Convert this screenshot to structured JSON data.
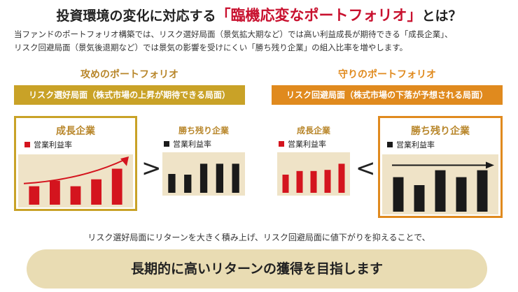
{
  "header": {
    "title_before": "投資環境の変化に対応する",
    "title_highlight": "「臨機応変なポートフォリオ」",
    "title_after": "とは？",
    "intro_line1": "当ファンドのポートフォリオ構築では、リスク選好局面（景気拡大期など）では高い利益成長が期待できる「成長企業」、",
    "intro_line2": "リスク回避局面（景気後退期など）では景気の影響を受けにくい「勝ち残り企業」の組入比率を増やします。"
  },
  "left": {
    "heading": "攻めのポートフォリオ",
    "banner": "リスク選好局面（株式市場の上昇が期待できる局面）",
    "big_panel": {
      "title": "成長企業",
      "legend": "営業利益率",
      "values": [
        40,
        52,
        40,
        55,
        78
      ],
      "arrow": "rising"
    },
    "small_panel": {
      "title": "勝ち残り企業",
      "legend": "営業利益率",
      "values": [
        52,
        50,
        80,
        80,
        80
      ]
    },
    "compare_symbol": ">"
  },
  "right": {
    "heading": "守りのポートフォリオ",
    "banner": "リスク回避局面（株式市場の下落が予想される局面）",
    "small_panel": {
      "title": "成長企業",
      "legend": "営業利益率",
      "values": [
        50,
        60,
        60,
        63,
        80
      ]
    },
    "big_panel": {
      "title": "勝ち残り企業",
      "legend": "営業利益率",
      "values": [
        65,
        50,
        78,
        65,
        78
      ],
      "arrow": "flat"
    },
    "compare_symbol": "<"
  },
  "footer": {
    "text": "リスク選好局面にリターンを大きく積み上げ、リスク回避局面に値下がりを抑えることで、",
    "goal": "長期的に高いリターンの獲得を目指します"
  },
  "colors": {
    "red": "#d4141e",
    "black": "#1a1a1a",
    "gold": "#c9a227",
    "orange": "#e08a1e",
    "gold_text": "#b8862a",
    "panel_fill": "#efe3c7",
    "goal_fill": "#e9dcb3"
  }
}
